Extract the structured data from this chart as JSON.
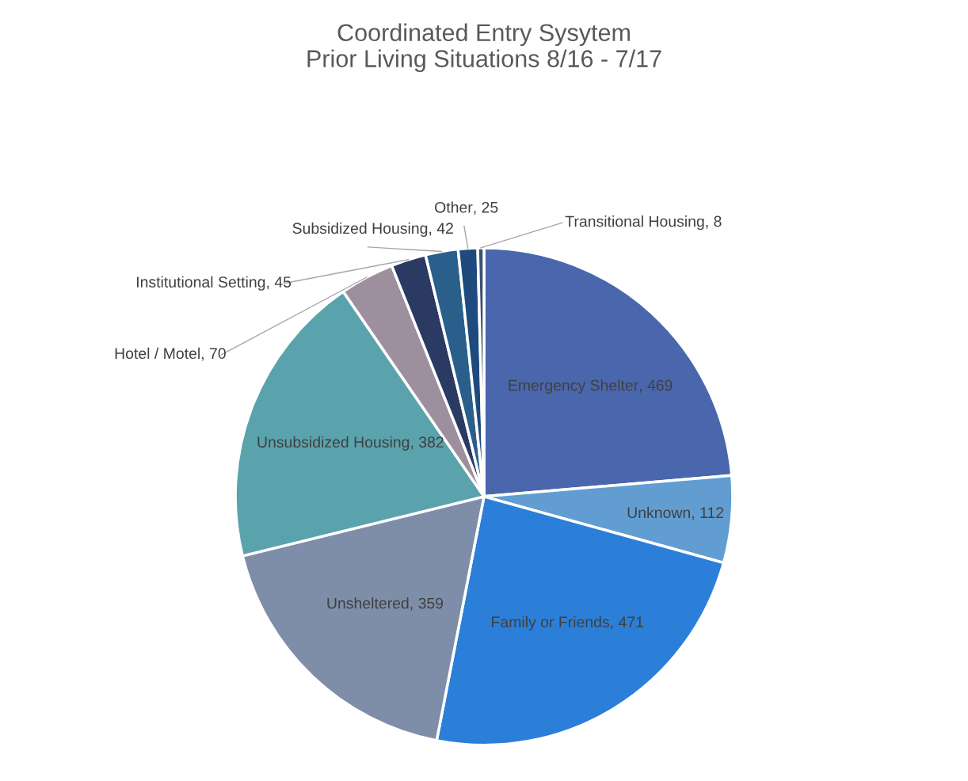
{
  "chart_data": {
    "type": "pie",
    "title": "Coordinated Entry Sysytem\nPrior Living Situations 8/16 - 7/17",
    "categories": [
      "Emergency Shelter",
      "Unknown",
      "Family or Friends",
      "Unsheltered",
      "Unsubsidized Housing",
      "Hotel / Motel",
      "Institutional Setting",
      "Subsidized Housing",
      "Other",
      "Transitional Housing"
    ],
    "values": [
      469,
      112,
      471,
      359,
      382,
      70,
      45,
      42,
      25,
      8
    ],
    "colors": [
      "#4a67ad",
      "#629dd1",
      "#2b7fd8",
      "#7f8ea8",
      "#5aa3ad",
      "#9e8f9e",
      "#2b3a63",
      "#2a5f8c",
      "#1e4a7d",
      "#3c4f6e"
    ],
    "value_labels": [
      ", 469",
      ", 112",
      ", 471",
      ", 359",
      ", 382",
      ", 70",
      ", 45",
      ", 42",
      ", 25",
      ", 8"
    ],
    "data_labels": true,
    "legend": false
  }
}
